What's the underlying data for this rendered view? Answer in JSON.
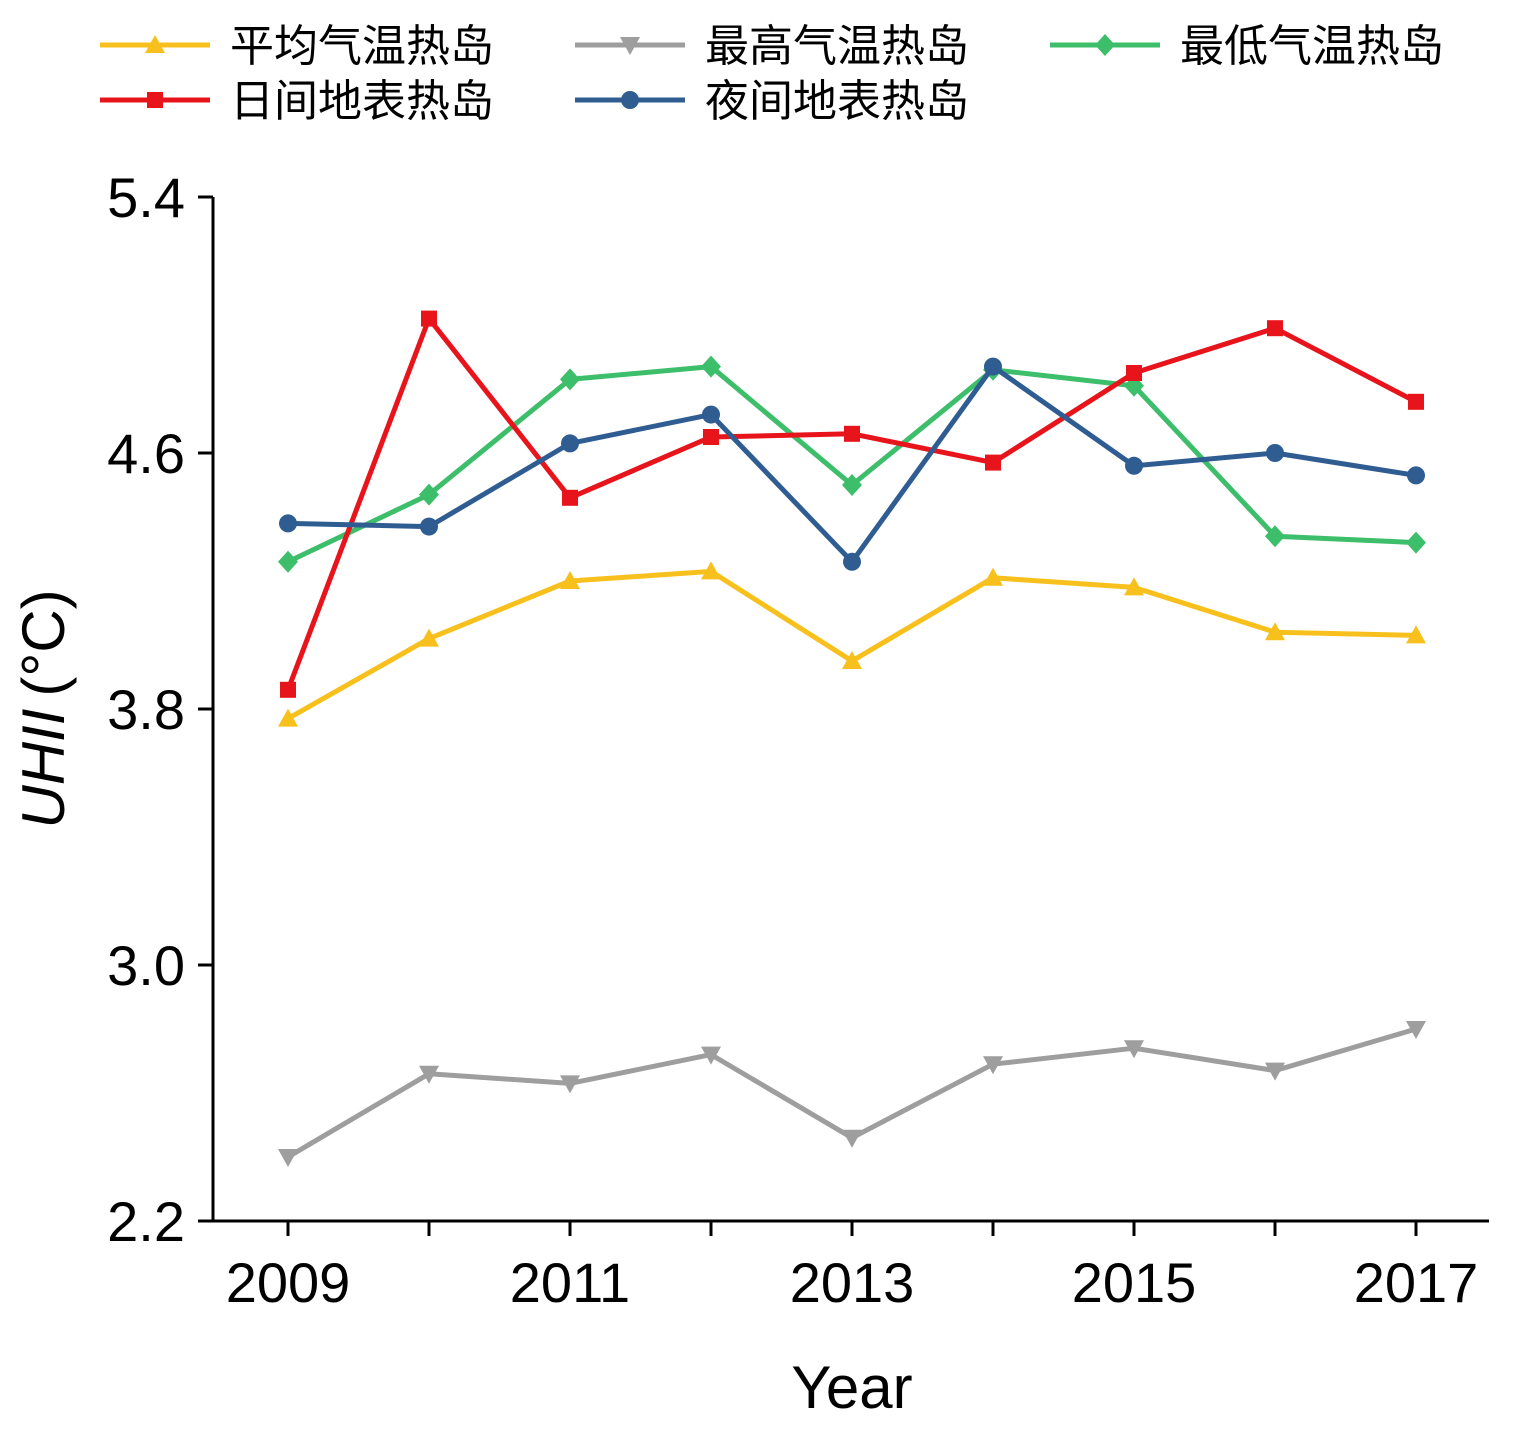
{
  "chart_data": {
    "type": "line",
    "title": "",
    "xlabel": "Year",
    "ylabel": "UHII",
    "ylabel_unit": "(°C)",
    "x": [
      2009,
      2010,
      2011,
      2012,
      2013,
      2014,
      2015,
      2016,
      2017
    ],
    "xticks": [
      "2009",
      "2011",
      "2013",
      "2015",
      "2017"
    ],
    "xlim": [
      2009,
      2017
    ],
    "ylim": [
      2.2,
      5.4
    ],
    "yticks": [
      "2.2",
      "3.0",
      "3.8",
      "4.6",
      "5.4"
    ],
    "grid": false,
    "legend_position": "top",
    "series": [
      {
        "name": "平均气温热岛",
        "color": "#F8C01C",
        "marker": "triangle-up",
        "values": [
          3.77,
          4.02,
          4.2,
          4.23,
          3.95,
          4.21,
          4.18,
          4.04,
          4.03
        ]
      },
      {
        "name": "最高气温热岛",
        "color": "#9E9E9E",
        "marker": "triangle-down",
        "values": [
          2.4,
          2.66,
          2.63,
          2.72,
          2.46,
          2.69,
          2.74,
          2.67,
          2.8
        ]
      },
      {
        "name": "最低气温热岛",
        "color": "#3DBE6A",
        "marker": "diamond",
        "values": [
          4.26,
          4.47,
          4.83,
          4.87,
          4.5,
          4.86,
          4.81,
          4.34,
          4.32
        ]
      },
      {
        "name": "日间地表热岛",
        "color": "#E8141B",
        "marker": "square",
        "values": [
          3.86,
          5.02,
          4.46,
          4.65,
          4.66,
          4.57,
          4.85,
          4.99,
          4.76
        ]
      },
      {
        "name": "夜间地表热岛",
        "color": "#2F5D92",
        "marker": "circle",
        "values": [
          4.38,
          4.37,
          4.63,
          4.72,
          4.26,
          4.87,
          4.56,
          4.6,
          4.53
        ]
      }
    ]
  }
}
